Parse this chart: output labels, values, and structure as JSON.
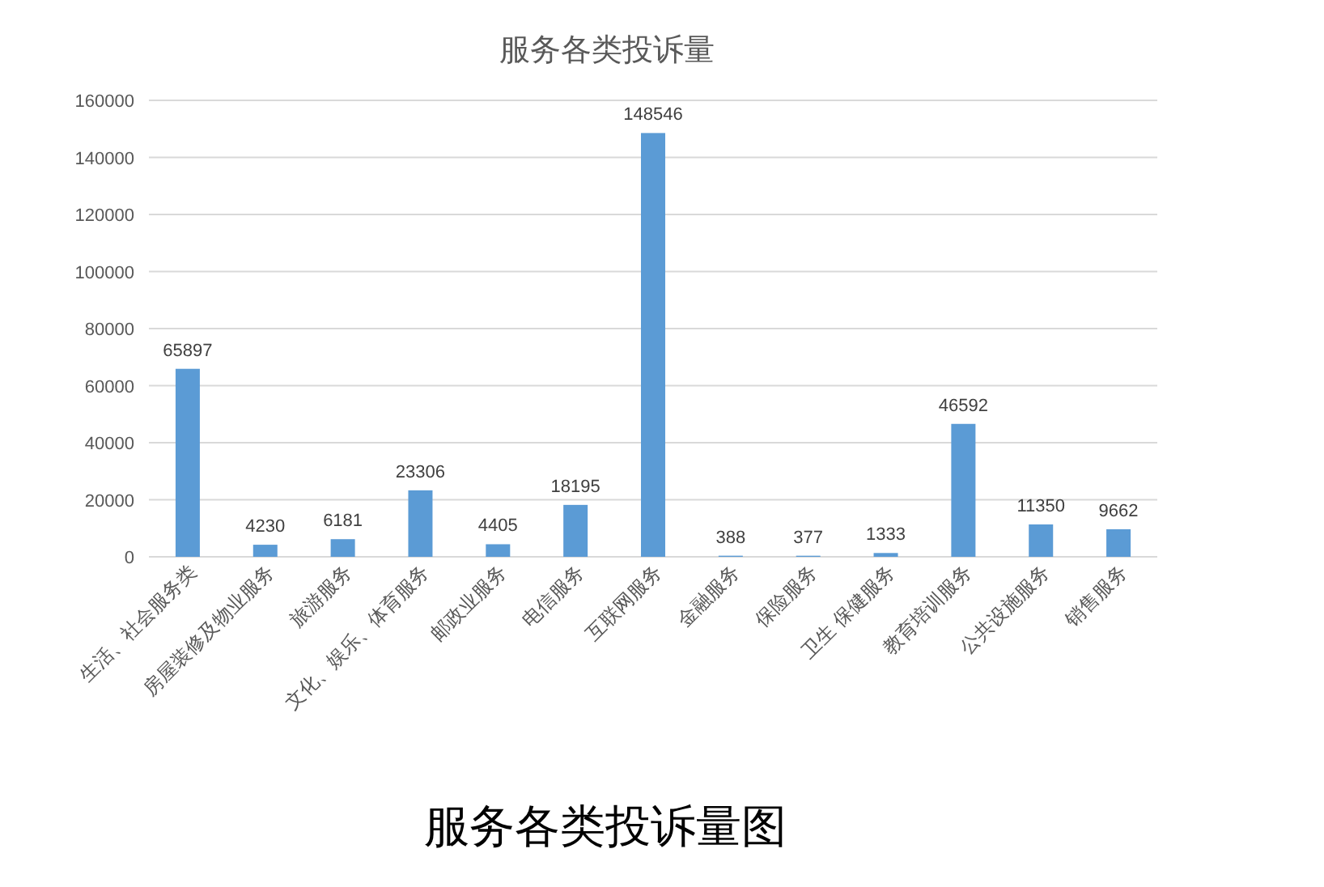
{
  "chart_data": {
    "type": "bar",
    "title": "服务各类投诉量",
    "categories": [
      "生活、社会服务类",
      "房屋装修及物业服务",
      "旅游服务",
      "文化、娱乐、体育服务",
      "邮政业服务",
      "电信服务",
      "互联网服务",
      "金融服务",
      "保险服务",
      "卫生 保健服务",
      "教育培训服务",
      "公共设施服务",
      "销售服务"
    ],
    "values": [
      65897,
      4230,
      6181,
      23306,
      4405,
      18195,
      148546,
      388,
      377,
      1333,
      46592,
      11350,
      9662
    ],
    "color": "#5b9bd5",
    "ylim": [
      0,
      160000
    ],
    "yticks": [
      0,
      20000,
      40000,
      60000,
      80000,
      100000,
      120000,
      140000,
      160000
    ],
    "grid": "y",
    "data_labels": true,
    "annotations": [
      "服务各类投诉量图"
    ]
  }
}
